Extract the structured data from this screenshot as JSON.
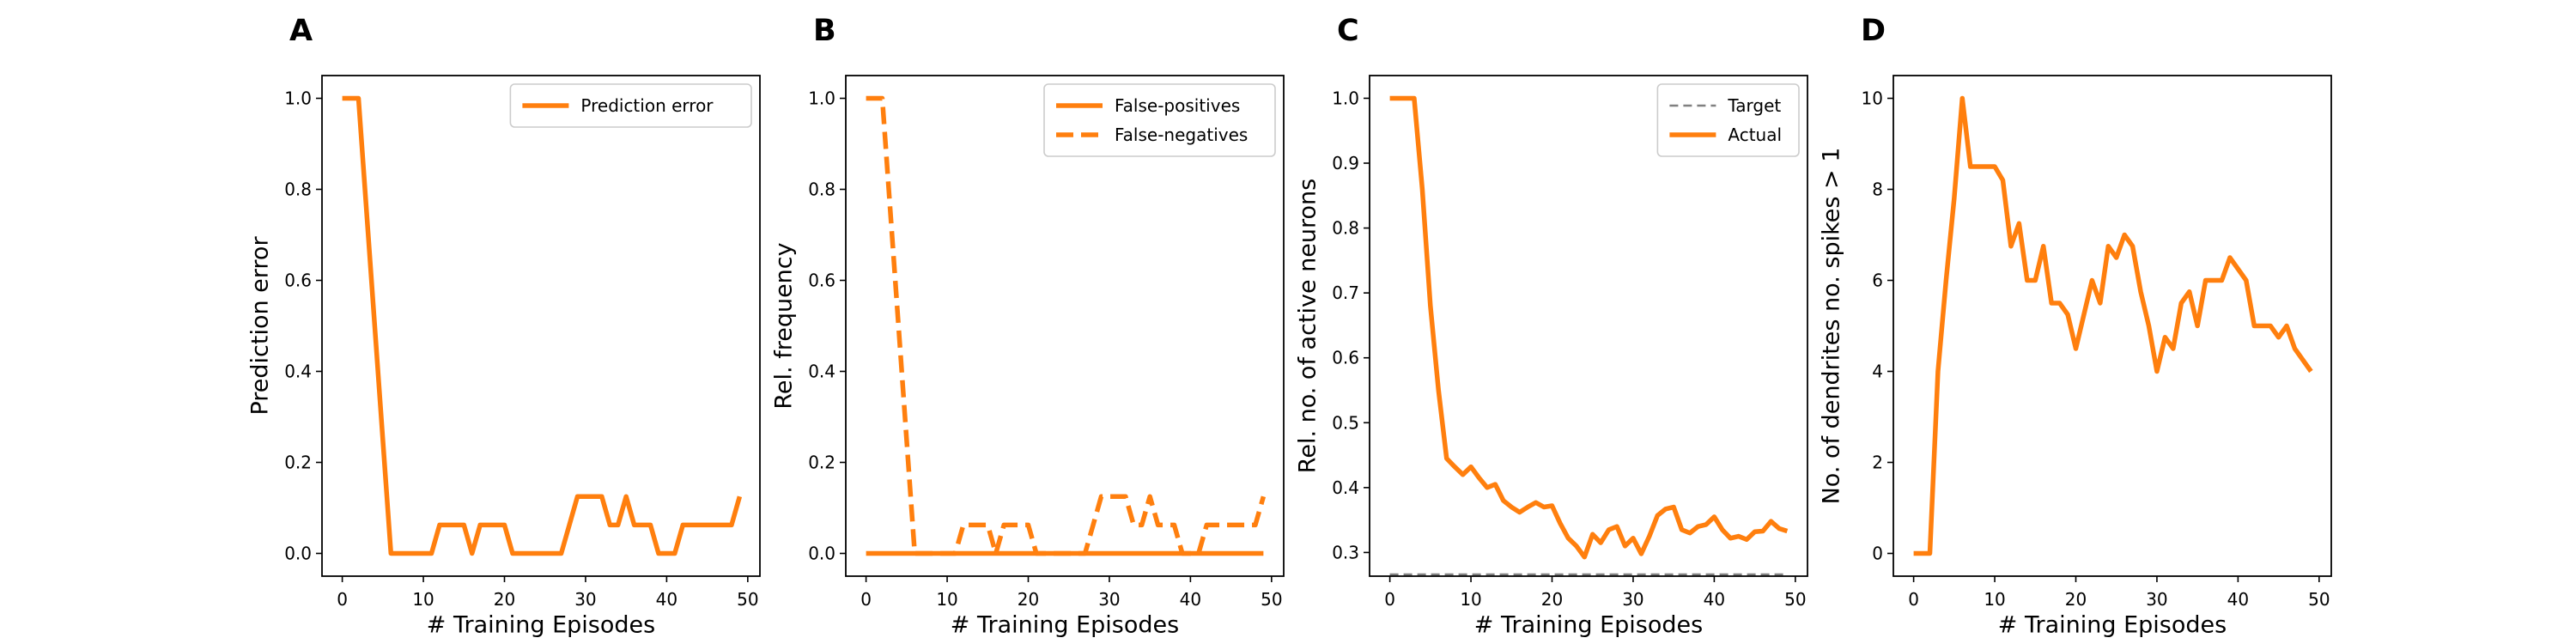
{
  "colors": {
    "orange": "#ff7f0e",
    "gray": "#808080"
  },
  "chart_data": [
    {
      "panel_label": "A",
      "type": "line",
      "xlabel": "# Training Episodes",
      "ylabel": "Prediction error",
      "xlim": [
        -2.5,
        51.5
      ],
      "ylim": [
        -0.05,
        1.05
      ],
      "xticks": [
        0,
        10,
        20,
        30,
        40,
        50
      ],
      "yticks": [
        "0.0",
        "0.2",
        "0.4",
        "0.6",
        "0.8",
        "1.0"
      ],
      "legend": "top-right",
      "grid": false,
      "series": [
        {
          "name": "Prediction error",
          "style": "solid",
          "color": "#ff7f0e",
          "x": [
            0,
            1,
            2,
            3,
            4,
            5,
            6,
            7,
            8,
            9,
            10,
            11,
            12,
            13,
            14,
            15,
            16,
            17,
            18,
            19,
            20,
            21,
            22,
            23,
            24,
            25,
            26,
            27,
            28,
            29,
            30,
            31,
            32,
            33,
            34,
            35,
            36,
            37,
            38,
            39,
            40,
            41,
            42,
            43,
            44,
            45,
            46,
            47,
            48,
            49
          ],
          "y": [
            1.0,
            1.0,
            1.0,
            0.75,
            0.5,
            0.25,
            0.0,
            0.0,
            0.0,
            0.0,
            0.0,
            0.0,
            0.0625,
            0.0625,
            0.0625,
            0.0625,
            0.0,
            0.0625,
            0.0625,
            0.0625,
            0.0625,
            0.0,
            0.0,
            0.0,
            0.0,
            0.0,
            0.0,
            0.0,
            0.0625,
            0.125,
            0.125,
            0.125,
            0.125,
            0.0625,
            0.0625,
            0.125,
            0.0625,
            0.0625,
            0.0625,
            0.0,
            0.0,
            0.0,
            0.0625,
            0.0625,
            0.0625,
            0.0625,
            0.0625,
            0.0625,
            0.0625,
            0.125
          ]
        }
      ]
    },
    {
      "panel_label": "B",
      "type": "line",
      "xlabel": "# Training Episodes",
      "ylabel": "Rel. frequency",
      "xlim": [
        -2.5,
        51.5
      ],
      "ylim": [
        -0.05,
        1.05
      ],
      "xticks": [
        0,
        10,
        20,
        30,
        40,
        50
      ],
      "yticks": [
        "0.0",
        "0.2",
        "0.4",
        "0.6",
        "0.8",
        "1.0"
      ],
      "legend": "top-right",
      "grid": false,
      "series": [
        {
          "name": "False-positives",
          "style": "solid",
          "color": "#ff7f0e",
          "x": [
            0,
            49
          ],
          "y": [
            0.0,
            0.0
          ]
        },
        {
          "name": "False-negatives",
          "style": "dashed",
          "color": "#ff7f0e",
          "x": [
            0,
            1,
            2,
            3,
            4,
            5,
            6,
            7,
            8,
            9,
            10,
            11,
            12,
            13,
            14,
            15,
            16,
            17,
            18,
            19,
            20,
            21,
            22,
            23,
            24,
            25,
            26,
            27,
            28,
            29,
            30,
            31,
            32,
            33,
            34,
            35,
            36,
            37,
            38,
            39,
            40,
            41,
            42,
            43,
            44,
            45,
            46,
            47,
            48,
            49
          ],
          "y": [
            1.0,
            1.0,
            1.0,
            0.75,
            0.5,
            0.25,
            0.0,
            0.0,
            0.0,
            0.0,
            0.0,
            0.0,
            0.0625,
            0.0625,
            0.0625,
            0.0625,
            0.0,
            0.0625,
            0.0625,
            0.0625,
            0.0625,
            0.0,
            0.0,
            0.0,
            0.0,
            0.0,
            0.0,
            0.0,
            0.0625,
            0.125,
            0.125,
            0.125,
            0.125,
            0.0625,
            0.0625,
            0.125,
            0.0625,
            0.0625,
            0.0625,
            0.0,
            0.0,
            0.0,
            0.0625,
            0.0625,
            0.0625,
            0.0625,
            0.0625,
            0.0625,
            0.0625,
            0.125
          ]
        }
      ]
    },
    {
      "panel_label": "C",
      "type": "line",
      "xlabel": "# Training Episodes",
      "ylabel": "Rel. no. of active neurons",
      "xlim": [
        -2.5,
        51.5
      ],
      "ylim": [
        0.2635,
        1.035
      ],
      "xticks": [
        0,
        10,
        20,
        30,
        40,
        50
      ],
      "yticks": [
        "0.3",
        "0.4",
        "0.5",
        "0.6",
        "0.7",
        "0.8",
        "0.9",
        "1.0"
      ],
      "legend": "top-right",
      "grid": false,
      "series": [
        {
          "name": "Target",
          "style": "dashed",
          "color": "#808080",
          "x": [
            0,
            49
          ],
          "y": [
            0.266,
            0.266
          ]
        },
        {
          "name": "Actual",
          "style": "solid",
          "color": "#ff7f0e",
          "x": [
            0,
            1,
            2,
            3,
            4,
            5,
            6,
            7,
            8,
            9,
            10,
            11,
            12,
            13,
            14,
            15,
            16,
            17,
            18,
            19,
            20,
            21,
            22,
            23,
            24,
            25,
            26,
            27,
            28,
            29,
            30,
            31,
            32,
            33,
            34,
            35,
            36,
            37,
            38,
            39,
            40,
            41,
            42,
            43,
            44,
            45,
            46,
            47,
            48,
            49
          ],
          "y": [
            1.0,
            1.0,
            1.0,
            1.0,
            0.86,
            0.68,
            0.55,
            0.445,
            0.432,
            0.42,
            0.432,
            0.415,
            0.4,
            0.405,
            0.38,
            0.37,
            0.362,
            0.37,
            0.377,
            0.37,
            0.372,
            0.345,
            0.322,
            0.31,
            0.293,
            0.328,
            0.315,
            0.335,
            0.34,
            0.31,
            0.322,
            0.298,
            0.325,
            0.357,
            0.367,
            0.37,
            0.335,
            0.33,
            0.34,
            0.343,
            0.355,
            0.335,
            0.322,
            0.325,
            0.32,
            0.332,
            0.333,
            0.348,
            0.337,
            0.333
          ]
        }
      ]
    },
    {
      "panel_label": "D",
      "type": "line",
      "xlabel": "# Training Episodes",
      "ylabel": "No. of dendrites no. spikes > 1",
      "xlim": [
        -2.5,
        51.5
      ],
      "ylim": [
        -0.5,
        10.5
      ],
      "xticks": [
        0,
        10,
        20,
        30,
        40,
        50
      ],
      "yticks": [
        "0",
        "2",
        "4",
        "6",
        "8",
        "10"
      ],
      "legend": "none",
      "grid": false,
      "series": [
        {
          "style": "solid",
          "color": "#ff7f0e",
          "x": [
            0,
            1,
            2,
            3,
            4,
            5,
            6,
            7,
            8,
            9,
            10,
            11,
            12,
            13,
            14,
            15,
            16,
            17,
            18,
            19,
            20,
            21,
            22,
            23,
            24,
            25,
            26,
            27,
            28,
            29,
            30,
            31,
            32,
            33,
            34,
            35,
            36,
            37,
            38,
            39,
            40,
            41,
            42,
            43,
            44,
            45,
            46,
            47,
            48,
            49
          ],
          "y": [
            0,
            0,
            0,
            4,
            6,
            7.8,
            10,
            8.5,
            8.5,
            8.5,
            8.5,
            8.2,
            6.75,
            7.25,
            6.0,
            6.0,
            6.75,
            5.5,
            5.5,
            5.25,
            4.5,
            5.25,
            6.0,
            5.5,
            6.75,
            6.5,
            7.0,
            6.75,
            5.75,
            5.0,
            4.0,
            4.75,
            4.5,
            5.5,
            5.75,
            5.0,
            6.0,
            6.0,
            6.0,
            6.5,
            6.25,
            6.0,
            5.0,
            5.0,
            5.0,
            4.75,
            5.0,
            4.5,
            4.25,
            4.0
          ]
        }
      ]
    }
  ]
}
